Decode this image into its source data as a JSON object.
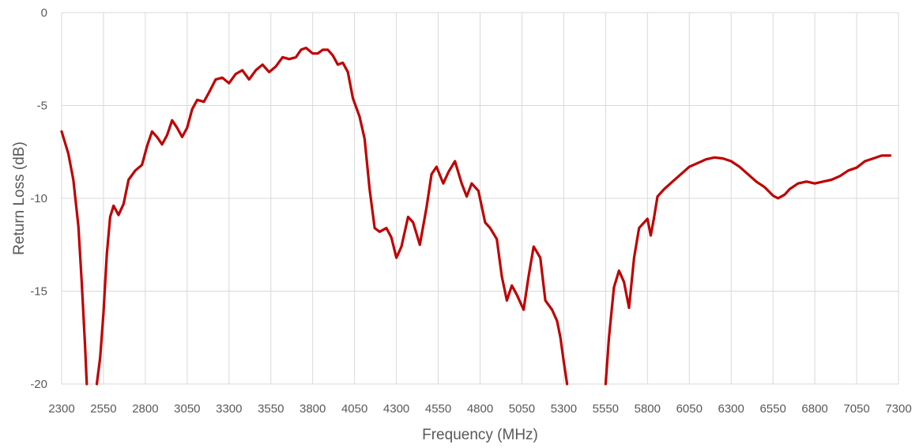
{
  "chart_data": {
    "type": "line",
    "title": "",
    "xlabel": "Frequency (MHz)",
    "ylabel": "Return Loss (dB)",
    "xlim": [
      2300,
      7300
    ],
    "ylim": [
      -20,
      0
    ],
    "grid": true,
    "legend": "none",
    "x_ticks": [
      2300,
      2550,
      2800,
      3050,
      3300,
      3550,
      3800,
      4050,
      4300,
      4550,
      4800,
      5050,
      5300,
      5550,
      5800,
      6050,
      6300,
      6550,
      6800,
      7050,
      7300
    ],
    "y_ticks": [
      0,
      -5,
      -10,
      -15,
      -20
    ],
    "colors": {
      "series": "#c00000",
      "grid": "#d9d9d9",
      "text": "#595959"
    },
    "series": [
      {
        "segments": [
          [
            [
              2300,
              -6.4
            ],
            [
              2340,
              -7.6
            ],
            [
              2370,
              -9.0
            ],
            [
              2400,
              -11.5
            ],
            [
              2420,
              -14.5
            ],
            [
              2440,
              -18.0
            ],
            [
              2450,
              -20.0
            ]
          ],
          [
            [
              2510,
              -20.0
            ],
            [
              2530,
              -18.6
            ],
            [
              2550,
              -16.2
            ],
            [
              2570,
              -13.0
            ],
            [
              2590,
              -11.0
            ],
            [
              2610,
              -10.4
            ],
            [
              2640,
              -10.9
            ],
            [
              2670,
              -10.3
            ],
            [
              2700,
              -9.0
            ],
            [
              2740,
              -8.5
            ],
            [
              2780,
              -8.2
            ],
            [
              2810,
              -7.2
            ],
            [
              2840,
              -6.4
            ],
            [
              2870,
              -6.7
            ],
            [
              2900,
              -7.1
            ],
            [
              2930,
              -6.6
            ],
            [
              2960,
              -5.8
            ],
            [
              2990,
              -6.2
            ],
            [
              3020,
              -6.7
            ],
            [
              3050,
              -6.2
            ],
            [
              3080,
              -5.2
            ],
            [
              3110,
              -4.7
            ],
            [
              3150,
              -4.8
            ],
            [
              3180,
              -4.3
            ],
            [
              3220,
              -3.6
            ],
            [
              3260,
              -3.5
            ],
            [
              3300,
              -3.8
            ],
            [
              3340,
              -3.3
            ],
            [
              3380,
              -3.1
            ],
            [
              3420,
              -3.6
            ],
            [
              3460,
              -3.1
            ],
            [
              3500,
              -2.8
            ],
            [
              3540,
              -3.2
            ],
            [
              3580,
              -2.9
            ],
            [
              3620,
              -2.4
            ],
            [
              3660,
              -2.5
            ],
            [
              3700,
              -2.4
            ],
            [
              3730,
              -2.0
            ],
            [
              3760,
              -1.9
            ],
            [
              3800,
              -2.2
            ],
            [
              3830,
              -2.2
            ],
            [
              3860,
              -2.0
            ],
            [
              3890,
              -2.0
            ],
            [
              3920,
              -2.3
            ],
            [
              3950,
              -2.8
            ],
            [
              3980,
              -2.7
            ],
            [
              4010,
              -3.2
            ],
            [
              4040,
              -4.6
            ],
            [
              4080,
              -5.6
            ],
            [
              4110,
              -6.8
            ],
            [
              4140,
              -9.5
            ],
            [
              4170,
              -11.6
            ],
            [
              4200,
              -11.8
            ],
            [
              4240,
              -11.6
            ],
            [
              4270,
              -12.1
            ],
            [
              4300,
              -13.2
            ],
            [
              4330,
              -12.6
            ],
            [
              4370,
              -11.0
            ],
            [
              4400,
              -11.3
            ],
            [
              4440,
              -12.5
            ],
            [
              4480,
              -10.5
            ],
            [
              4510,
              -8.7
            ],
            [
              4540,
              -8.3
            ],
            [
              4580,
              -9.2
            ],
            [
              4610,
              -8.6
            ],
            [
              4650,
              -8.0
            ],
            [
              4690,
              -9.2
            ],
            [
              4720,
              -9.9
            ],
            [
              4750,
              -9.2
            ],
            [
              4790,
              -9.6
            ],
            [
              4830,
              -11.3
            ],
            [
              4860,
              -11.6
            ],
            [
              4900,
              -12.2
            ],
            [
              4930,
              -14.2
            ],
            [
              4960,
              -15.5
            ],
            [
              4990,
              -14.7
            ],
            [
              5020,
              -15.2
            ],
            [
              5060,
              -16.0
            ],
            [
              5090,
              -14.2
            ],
            [
              5120,
              -12.6
            ],
            [
              5160,
              -13.2
            ],
            [
              5190,
              -15.5
            ],
            [
              5230,
              -16.0
            ],
            [
              5260,
              -16.6
            ],
            [
              5280,
              -17.5
            ],
            [
              5300,
              -18.8
            ],
            [
              5320,
              -20.0
            ]
          ],
          [
            [
              5550,
              -20.0
            ],
            [
              5570,
              -17.5
            ],
            [
              5600,
              -14.8
            ],
            [
              5630,
              -13.9
            ],
            [
              5660,
              -14.5
            ],
            [
              5690,
              -15.9
            ],
            [
              5720,
              -13.2
            ],
            [
              5750,
              -11.6
            ],
            [
              5780,
              -11.3
            ],
            [
              5800,
              -11.1
            ],
            [
              5820,
              -12.0
            ],
            [
              5840,
              -11.0
            ],
            [
              5860,
              -9.9
            ],
            [
              5900,
              -9.5
            ],
            [
              5950,
              -9.1
            ],
            [
              6000,
              -8.7
            ],
            [
              6050,
              -8.3
            ],
            [
              6100,
              -8.1
            ],
            [
              6150,
              -7.9
            ],
            [
              6200,
              -7.8
            ],
            [
              6250,
              -7.85
            ],
            [
              6300,
              -8.0
            ],
            [
              6350,
              -8.3
            ],
            [
              6400,
              -8.7
            ],
            [
              6450,
              -9.1
            ],
            [
              6500,
              -9.4
            ],
            [
              6550,
              -9.85
            ],
            [
              6580,
              -10.0
            ],
            [
              6620,
              -9.8
            ],
            [
              6650,
              -9.5
            ],
            [
              6700,
              -9.2
            ],
            [
              6750,
              -9.1
            ],
            [
              6800,
              -9.2
            ],
            [
              6850,
              -9.1
            ],
            [
              6900,
              -9.0
            ],
            [
              6950,
              -8.8
            ],
            [
              7000,
              -8.5
            ],
            [
              7050,
              -8.35
            ],
            [
              7100,
              -8.0
            ],
            [
              7150,
              -7.85
            ],
            [
              7200,
              -7.7
            ],
            [
              7250,
              -7.7
            ]
          ]
        ]
      }
    ]
  }
}
